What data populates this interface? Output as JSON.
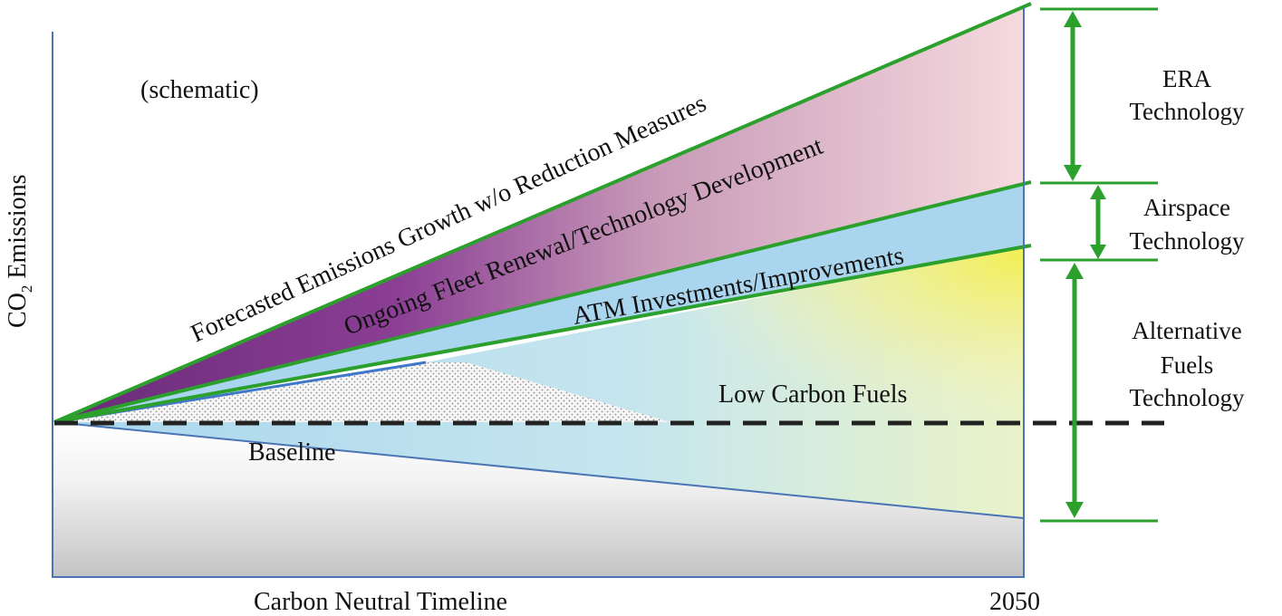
{
  "diagram": {
    "annotation": "(schematic)",
    "y_axis_label_main": "CO",
    "y_axis_label_sub": "2",
    "y_axis_label_rest": " Emissions",
    "x_axis_label": "Carbon Neutral Timeline",
    "x_end_label": "2050",
    "band_labels": {
      "forecast": "Forecasted Emissions Growth w/o Reduction Measures",
      "fleet": "Ongoing Fleet Renewal/Technology Development",
      "atm": "ATM Investments/Improvements",
      "fuels": "Low Carbon Fuels",
      "baseline": "Baseline"
    },
    "brackets": [
      {
        "line1": "ERA",
        "line2": "Technology"
      },
      {
        "line1": "Airspace",
        "line2": "Technology"
      },
      {
        "line1": "Alternative",
        "line2": "Fuels",
        "line3": "Technology"
      }
    ],
    "colors": {
      "forecast_line": "#2ca02c",
      "bracket_arrow": "#2ca02c",
      "fleet_band_start": "#7b2e86",
      "fleet_band_end": "#f4d8dc",
      "atm_band": "#a8d4ec",
      "fuels_yellow": "#f3ef5c",
      "axis": "#4a74b4",
      "baseline_dash": "#222222"
    }
  }
}
